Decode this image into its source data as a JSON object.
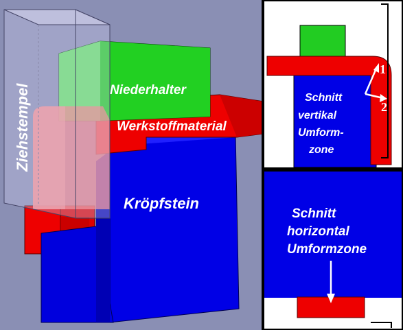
{
  "main": {
    "labels": {
      "ziehstempel": "Ziehstempel",
      "niederhalter": "Niederhalter",
      "werkstoff": "Werkstoffmaterial",
      "kroepfstein": "Kröpfstein"
    }
  },
  "panel_vertical": {
    "lines": [
      "Schnitt",
      "vertikal",
      "Umform-",
      "zone"
    ],
    "arrow_1_label": "1",
    "arrow_2_label": "2"
  },
  "panel_horizontal": {
    "lines": [
      "Schnitt",
      "horizontal",
      "Umformzone"
    ]
  },
  "colors": {
    "background": "#8a8fb4",
    "blue": "#0000e6",
    "red": "#ee0000",
    "green": "#22cc22",
    "border": "#000000"
  }
}
